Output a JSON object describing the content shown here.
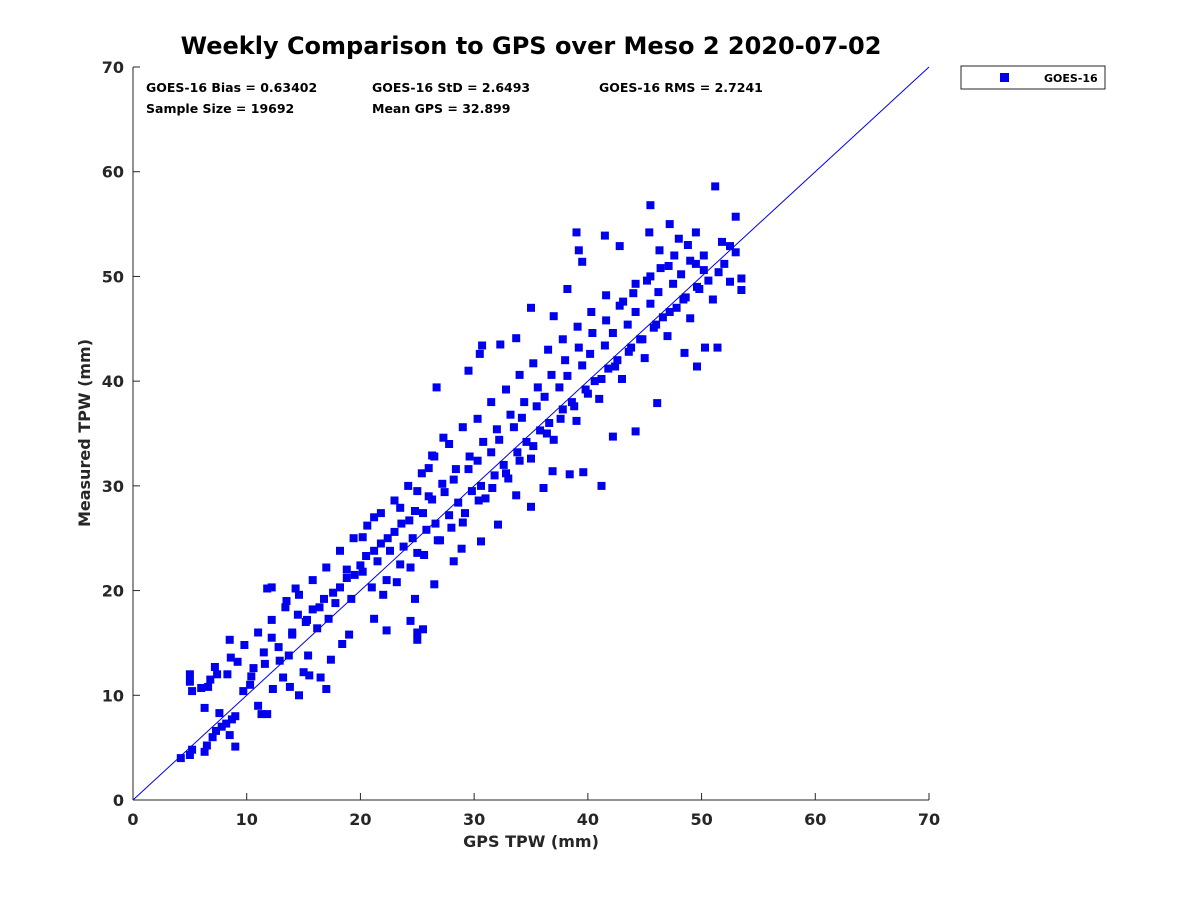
{
  "chart_data": {
    "type": "scatter",
    "title": "Weekly Comparison to GPS over Meso 2 2020-07-02",
    "xlabel": "GPS TPW (mm)",
    "ylabel": "Measured TPW (mm)",
    "xlim": [
      0,
      70
    ],
    "ylim": [
      0,
      70
    ],
    "xticks": [
      "0",
      "10",
      "20",
      "30",
      "40",
      "50",
      "60",
      "70"
    ],
    "yticks": [
      "0",
      "10",
      "20",
      "30",
      "40",
      "50",
      "60",
      "70"
    ],
    "grid": false,
    "legend_position": "outside-top-right",
    "reference_line": {
      "type": "one-to-one",
      "from": [
        0,
        0
      ],
      "to": [
        70,
        70
      ]
    },
    "stats": {
      "bias": "GOES-16 Bias = 0.63402",
      "std": "GOES-16 StD = 2.6493",
      "rms": "GOES-16 RMS = 2.7241",
      "sample_size": "Sample Size = 19692",
      "mean_gps": "Mean GPS = 32.899"
    },
    "series": [
      {
        "name": "GOES-16",
        "color": "#0000ee",
        "marker": "square",
        "points": [
          [
            4.2,
            4.0
          ],
          [
            5.0,
            4.3
          ],
          [
            5.2,
            4.8
          ],
          [
            6.3,
            4.6
          ],
          [
            6.5,
            5.2
          ],
          [
            7.0,
            6.0
          ],
          [
            7.3,
            6.6
          ],
          [
            7.8,
            7.0
          ],
          [
            8.2,
            7.3
          ],
          [
            8.7,
            7.7
          ],
          [
            9.0,
            8.0
          ],
          [
            9.0,
            5.1
          ],
          [
            8.5,
            6.2
          ],
          [
            7.6,
            8.3
          ],
          [
            6.3,
            8.8
          ],
          [
            5.2,
            10.4
          ],
          [
            5.0,
            11.3
          ],
          [
            5.0,
            12.0
          ],
          [
            6.0,
            10.7
          ],
          [
            6.8,
            11.5
          ],
          [
            7.2,
            12.7
          ],
          [
            8.3,
            12.0
          ],
          [
            8.5,
            15.3
          ],
          [
            9.2,
            13.2
          ],
          [
            9.7,
            10.4
          ],
          [
            10.3,
            11.0
          ],
          [
            10.6,
            12.6
          ],
          [
            11.0,
            9.0
          ],
          [
            11.3,
            8.2
          ],
          [
            11.8,
            8.2
          ],
          [
            12.3,
            10.6
          ],
          [
            11.5,
            14.1
          ],
          [
            12.2,
            15.5
          ],
          [
            12.9,
            13.3
          ],
          [
            13.2,
            11.7
          ],
          [
            13.7,
            13.8
          ],
          [
            14.0,
            16.0
          ],
          [
            14.5,
            17.7
          ],
          [
            13.5,
            19.0
          ],
          [
            12.2,
            20.3
          ],
          [
            11.8,
            20.2
          ],
          [
            14.3,
            20.2
          ],
          [
            15.3,
            17.2
          ],
          [
            15.8,
            18.2
          ],
          [
            16.2,
            16.4
          ],
          [
            16.8,
            19.2
          ],
          [
            15.4,
            13.8
          ],
          [
            15.0,
            12.2
          ],
          [
            14.6,
            10.0
          ],
          [
            13.8,
            10.8
          ],
          [
            17.2,
            17.3
          ],
          [
            17.8,
            18.8
          ],
          [
            18.2,
            20.3
          ],
          [
            18.8,
            22.0
          ],
          [
            19.2,
            19.2
          ],
          [
            19.5,
            21.5
          ],
          [
            20.2,
            21.8
          ],
          [
            20.5,
            23.3
          ],
          [
            21.0,
            20.3
          ],
          [
            21.5,
            22.8
          ],
          [
            21.8,
            24.5
          ],
          [
            22.3,
            21.0
          ],
          [
            22.6,
            23.8
          ],
          [
            23.0,
            25.6
          ],
          [
            23.5,
            22.5
          ],
          [
            23.8,
            24.2
          ],
          [
            24.3,
            26.7
          ],
          [
            24.6,
            25.0
          ],
          [
            25.0,
            23.6
          ],
          [
            25.5,
            27.4
          ],
          [
            25.8,
            25.8
          ],
          [
            26.3,
            28.7
          ],
          [
            26.6,
            26.4
          ],
          [
            27.0,
            24.8
          ],
          [
            27.4,
            29.4
          ],
          [
            27.8,
            27.2
          ],
          [
            28.2,
            30.6
          ],
          [
            28.6,
            28.4
          ],
          [
            29.0,
            26.5
          ],
          [
            29.5,
            31.6
          ],
          [
            29.8,
            29.5
          ],
          [
            30.3,
            32.4
          ],
          [
            30.6,
            30.0
          ],
          [
            31.0,
            28.8
          ],
          [
            31.5,
            33.2
          ],
          [
            31.8,
            31.0
          ],
          [
            32.2,
            34.4
          ],
          [
            32.6,
            32.0
          ],
          [
            33.0,
            30.7
          ],
          [
            33.5,
            35.6
          ],
          [
            33.8,
            33.2
          ],
          [
            34.2,
            36.5
          ],
          [
            34.6,
            34.2
          ],
          [
            35.0,
            32.6
          ],
          [
            35.5,
            37.6
          ],
          [
            35.8,
            35.3
          ],
          [
            36.2,
            38.5
          ],
          [
            36.6,
            36.0
          ],
          [
            37.0,
            34.4
          ],
          [
            37.5,
            39.4
          ],
          [
            37.8,
            37.3
          ],
          [
            38.2,
            40.5
          ],
          [
            38.6,
            38.0
          ],
          [
            39.0,
            36.2
          ],
          [
            39.5,
            41.5
          ],
          [
            39.8,
            39.2
          ],
          [
            40.2,
            42.6
          ],
          [
            40.6,
            40.0
          ],
          [
            41.0,
            38.3
          ],
          [
            41.5,
            43.4
          ],
          [
            41.8,
            41.2
          ],
          [
            42.2,
            44.6
          ],
          [
            42.6,
            42.0
          ],
          [
            43.0,
            40.2
          ],
          [
            43.5,
            45.4
          ],
          [
            43.8,
            43.2
          ],
          [
            44.2,
            46.6
          ],
          [
            44.6,
            44.0
          ],
          [
            45.0,
            42.2
          ],
          [
            45.5,
            47.4
          ],
          [
            45.8,
            45.1
          ],
          [
            46.2,
            48.5
          ],
          [
            46.6,
            46.1
          ],
          [
            47.0,
            44.3
          ],
          [
            47.5,
            49.3
          ],
          [
            47.8,
            47.0
          ],
          [
            48.2,
            50.2
          ],
          [
            48.6,
            48.0
          ],
          [
            49.0,
            46.0
          ],
          [
            49.5,
            51.2
          ],
          [
            49.8,
            48.8
          ],
          [
            50.2,
            52.0
          ],
          [
            50.6,
            49.6
          ],
          [
            51.0,
            47.8
          ],
          [
            51.5,
            50.4
          ],
          [
            52.0,
            51.2
          ],
          [
            52.5,
            49.5
          ],
          [
            53.0,
            52.3
          ],
          [
            53.5,
            49.8
          ],
          [
            53.5,
            48.7
          ],
          [
            51.4,
            43.2
          ],
          [
            50.3,
            43.2
          ],
          [
            49.6,
            41.4
          ],
          [
            48.5,
            42.7
          ],
          [
            46.1,
            37.9
          ],
          [
            44.2,
            35.2
          ],
          [
            42.2,
            34.7
          ],
          [
            41.2,
            30.0
          ],
          [
            39.6,
            31.3
          ],
          [
            38.4,
            31.1
          ],
          [
            36.9,
            31.4
          ],
          [
            36.1,
            29.8
          ],
          [
            35.0,
            28.0
          ],
          [
            33.7,
            29.1
          ],
          [
            32.1,
            26.3
          ],
          [
            30.6,
            24.7
          ],
          [
            28.9,
            24.0
          ],
          [
            28.2,
            22.8
          ],
          [
            26.5,
            20.6
          ],
          [
            24.8,
            19.2
          ],
          [
            24.4,
            17.1
          ],
          [
            25.0,
            16.0
          ],
          [
            25.5,
            16.3
          ],
          [
            25.0,
            15.3
          ],
          [
            22.3,
            16.2
          ],
          [
            21.2,
            17.3
          ],
          [
            19.0,
            15.8
          ],
          [
            18.4,
            14.9
          ],
          [
            17.4,
            13.4
          ],
          [
            16.5,
            11.7
          ],
          [
            15.5,
            11.9
          ],
          [
            17.0,
            10.6
          ],
          [
            20.2,
            25.1
          ],
          [
            21.2,
            27.0
          ],
          [
            23.5,
            27.9
          ],
          [
            25.0,
            29.5
          ],
          [
            26.0,
            31.7
          ],
          [
            26.3,
            32.9
          ],
          [
            27.3,
            34.6
          ],
          [
            26.7,
            39.4
          ],
          [
            29.5,
            41.0
          ],
          [
            30.7,
            43.4
          ],
          [
            30.5,
            42.6
          ],
          [
            32.3,
            43.5
          ],
          [
            33.7,
            44.1
          ],
          [
            35.0,
            47.0
          ],
          [
            37.0,
            46.2
          ],
          [
            38.2,
            48.8
          ],
          [
            39.5,
            51.4
          ],
          [
            39.0,
            54.2
          ],
          [
            39.2,
            52.5
          ],
          [
            41.5,
            53.9
          ],
          [
            42.8,
            52.9
          ],
          [
            45.5,
            56.8
          ],
          [
            45.4,
            54.2
          ],
          [
            46.3,
            52.5
          ],
          [
            47.2,
            55.0
          ],
          [
            48.0,
            53.6
          ],
          [
            49.5,
            54.2
          ],
          [
            51.2,
            58.6
          ],
          [
            53.0,
            55.7
          ],
          [
            52.5,
            52.9
          ],
          [
            51.8,
            53.3
          ],
          [
            50.2,
            50.6
          ],
          [
            49.0,
            51.5
          ],
          [
            47.1,
            51.0
          ],
          [
            45.5,
            50.0
          ],
          [
            44.2,
            49.3
          ],
          [
            43.1,
            47.6
          ],
          [
            41.6,
            48.2
          ],
          [
            40.3,
            46.6
          ],
          [
            39.1,
            45.2
          ],
          [
            37.8,
            44.0
          ],
          [
            36.5,
            43.0
          ],
          [
            35.2,
            41.7
          ],
          [
            34.0,
            40.6
          ],
          [
            32.8,
            39.2
          ],
          [
            31.5,
            38.0
          ],
          [
            30.3,
            36.4
          ],
          [
            29.0,
            35.6
          ],
          [
            27.8,
            34.0
          ],
          [
            26.5,
            32.8
          ],
          [
            25.4,
            31.2
          ],
          [
            24.2,
            30.0
          ],
          [
            23.0,
            28.6
          ],
          [
            21.8,
            27.4
          ],
          [
            20.6,
            26.2
          ],
          [
            19.4,
            25.0
          ],
          [
            18.2,
            23.8
          ],
          [
            17.0,
            22.2
          ],
          [
            15.8,
            21.0
          ],
          [
            14.6,
            19.6
          ],
          [
            13.4,
            18.4
          ],
          [
            12.2,
            17.2
          ],
          [
            11.0,
            16.0
          ],
          [
            9.8,
            14.8
          ],
          [
            8.6,
            13.6
          ],
          [
            7.4,
            12.0
          ],
          [
            6.6,
            10.8
          ],
          [
            10.4,
            11.8
          ],
          [
            11.6,
            13.0
          ],
          [
            12.8,
            14.6
          ],
          [
            14.0,
            15.8
          ],
          [
            15.2,
            17.0
          ],
          [
            16.4,
            18.4
          ],
          [
            17.6,
            19.8
          ],
          [
            18.8,
            21.2
          ],
          [
            20.0,
            22.4
          ],
          [
            21.2,
            23.8
          ],
          [
            22.4,
            25.0
          ],
          [
            23.6,
            26.4
          ],
          [
            24.8,
            27.6
          ],
          [
            26.0,
            29.0
          ],
          [
            27.2,
            30.2
          ],
          [
            28.4,
            31.6
          ],
          [
            29.6,
            32.8
          ],
          [
            30.8,
            34.2
          ],
          [
            32.0,
            35.4
          ],
          [
            33.2,
            36.8
          ],
          [
            34.4,
            38.0
          ],
          [
            35.6,
            39.4
          ],
          [
            36.8,
            40.6
          ],
          [
            38.0,
            42.0
          ],
          [
            39.2,
            43.2
          ],
          [
            40.4,
            44.6
          ],
          [
            41.6,
            45.8
          ],
          [
            42.8,
            47.2
          ],
          [
            44.0,
            48.4
          ],
          [
            45.2,
            49.6
          ],
          [
            46.4,
            50.8
          ],
          [
            47.6,
            52.0
          ],
          [
            48.8,
            53.0
          ],
          [
            22.0,
            19.6
          ],
          [
            23.2,
            20.8
          ],
          [
            24.4,
            22.2
          ],
          [
            25.6,
            23.4
          ],
          [
            26.8,
            24.8
          ],
          [
            28.0,
            26.0
          ],
          [
            29.2,
            27.4
          ],
          [
            30.4,
            28.6
          ],
          [
            31.6,
            29.8
          ],
          [
            32.8,
            31.2
          ],
          [
            34.0,
            32.4
          ],
          [
            35.2,
            33.8
          ],
          [
            36.4,
            35.0
          ],
          [
            37.6,
            36.4
          ],
          [
            38.8,
            37.6
          ],
          [
            40.0,
            38.8
          ],
          [
            41.2,
            40.2
          ],
          [
            42.4,
            41.4
          ],
          [
            43.6,
            42.8
          ],
          [
            44.8,
            44.0
          ],
          [
            46.0,
            45.4
          ],
          [
            47.2,
            46.6
          ],
          [
            48.4,
            47.8
          ],
          [
            49.6,
            49.0
          ]
        ]
      }
    ]
  }
}
